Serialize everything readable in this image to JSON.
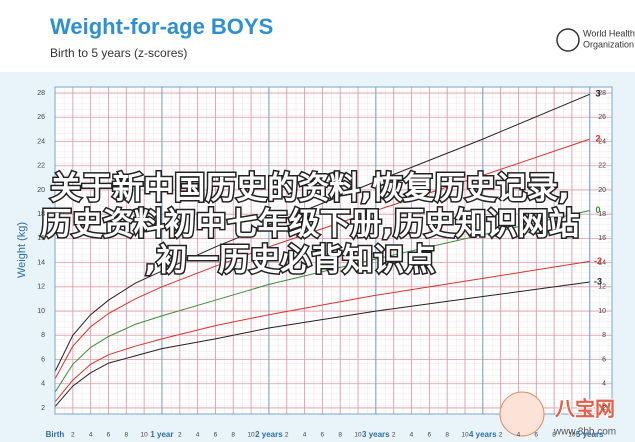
{
  "chart_data": {
    "type": "line",
    "title": "Weight-for-age BOYS",
    "subtitle": "Birth to 5 years (z-scores)",
    "y_label": "Weight (kg)",
    "x": [
      0,
      2,
      4,
      6,
      9,
      12,
      18,
      24,
      36,
      48,
      60
    ],
    "series": [
      {
        "name": "3",
        "color": "#222222",
        "values": [
          5.0,
          8.0,
          9.7,
          10.9,
          12.3,
          13.3,
          15.3,
          17.1,
          20.7,
          24.2,
          27.9
        ]
      },
      {
        "name": "2",
        "color": "#d8322f",
        "values": [
          4.4,
          7.1,
          8.7,
          9.8,
          11.0,
          12.0,
          13.7,
          15.3,
          18.3,
          21.2,
          24.2
        ]
      },
      {
        "name": "0",
        "color": "#3c8c3c",
        "values": [
          3.3,
          5.6,
          7.0,
          7.9,
          8.9,
          9.6,
          10.9,
          12.2,
          14.3,
          16.3,
          18.3
        ]
      },
      {
        "name": "-2",
        "color": "#d8322f",
        "values": [
          2.5,
          4.3,
          5.6,
          6.4,
          7.1,
          7.7,
          8.8,
          9.7,
          11.3,
          12.7,
          14.1
        ]
      },
      {
        "name": "-3",
        "color": "#222222",
        "values": [
          2.1,
          3.8,
          4.9,
          5.7,
          6.3,
          6.9,
          7.7,
          8.6,
          10.0,
          11.2,
          12.4
        ]
      }
    ],
    "xlim": [
      0,
      62.5
    ],
    "xticks": [
      {
        "value": 0,
        "label": "Birth"
      },
      2,
      4,
      6,
      8,
      10,
      {
        "value": 12,
        "label": "1 year"
      },
      {
        "value": 14,
        "label": "2"
      },
      {
        "value": 16,
        "label": "4"
      },
      {
        "value": 18,
        "label": "6"
      },
      {
        "value": 20,
        "label": "8"
      },
      {
        "value": 22,
        "label": "10"
      },
      {
        "value": 24,
        "label": "2 years"
      },
      {
        "value": 26,
        "label": "2"
      },
      {
        "value": 28,
        "label": "4"
      },
      {
        "value": 30,
        "label": "6"
      },
      {
        "value": 32,
        "label": "8"
      },
      {
        "value": 34,
        "label": "10"
      },
      {
        "value": 36,
        "label": "3 years"
      },
      {
        "value": 38,
        "label": "2"
      },
      {
        "value": 40,
        "label": "4"
      },
      {
        "value": 42,
        "label": "6"
      },
      {
        "value": 44,
        "label": "8"
      },
      {
        "value": 46,
        "label": "10"
      },
      {
        "value": 48,
        "label": "4 years"
      },
      {
        "value": 50,
        "label": "2"
      },
      {
        "value": 52,
        "label": "4"
      },
      {
        "value": 54,
        "label": "6"
      },
      {
        "value": 56,
        "label": "8"
      },
      {
        "value": 58,
        "label": "10"
      },
      {
        "value": 60,
        "label": "5 years"
      }
    ],
    "ylim": [
      1.5,
      28.5
    ],
    "yticks": [
      2,
      4,
      6,
      8,
      10,
      12,
      14,
      16,
      18,
      20,
      22,
      24,
      26,
      28
    ],
    "grid": true
  },
  "logo_text": [
    "World Health",
    "Organization"
  ],
  "overlay_text": [
    "关于新中国历史的资料,恢复历史记录,",
    "历史资料初中七年级下册,历史知识网站",
    ",初一历史必背知识点"
  ],
  "watermark": {
    "brand": "八宝网",
    "url": "www.8bb.com"
  }
}
